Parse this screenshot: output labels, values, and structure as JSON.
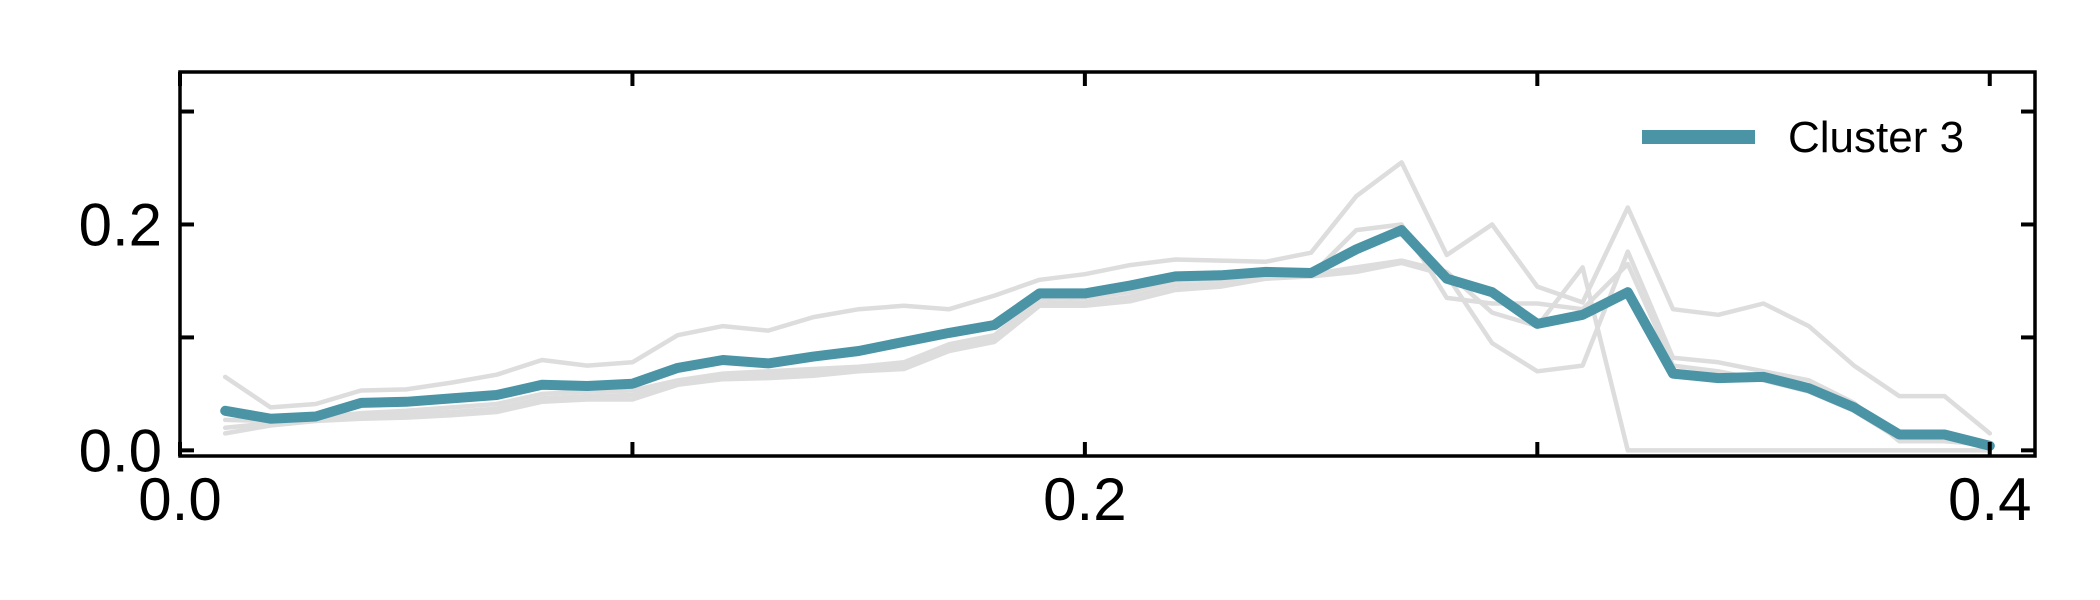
{
  "chart_data": {
    "type": "line",
    "title": "",
    "xlabel": "",
    "ylabel": "",
    "xlim": [
      0.0,
      0.41
    ],
    "ylim": [
      -0.005,
      0.335
    ],
    "x_ticks": [
      {
        "value": 0.0,
        "label": "0.0"
      },
      {
        "value": 0.1,
        "label": ""
      },
      {
        "value": 0.2,
        "label": "0.2"
      },
      {
        "value": 0.3,
        "label": ""
      },
      {
        "value": 0.4,
        "label": "0.4"
      }
    ],
    "y_ticks": [
      {
        "value": 0.0,
        "label": "0.0"
      },
      {
        "value": 0.1,
        "label": ""
      },
      {
        "value": 0.2,
        "label": "0.2"
      },
      {
        "value": 0.3,
        "label": ""
      }
    ],
    "legend": {
      "position": "top-right"
    },
    "x": [
      0.01,
      0.02,
      0.03,
      0.04,
      0.05,
      0.06,
      0.07,
      0.08,
      0.09,
      0.1,
      0.11,
      0.12,
      0.13,
      0.14,
      0.15,
      0.16,
      0.17,
      0.18,
      0.19,
      0.2,
      0.21,
      0.22,
      0.23,
      0.24,
      0.25,
      0.26,
      0.27,
      0.28,
      0.29,
      0.3,
      0.31,
      0.32,
      0.33,
      0.34,
      0.35,
      0.36,
      0.37,
      0.38,
      0.39,
      0.4
    ],
    "series": [
      {
        "name": "Cluster 3",
        "highlight": true,
        "color": "#4a94a6",
        "values": [
          0.035,
          0.028,
          0.03,
          0.042,
          0.043,
          0.046,
          0.049,
          0.058,
          0.057,
          0.059,
          0.073,
          0.08,
          0.077,
          0.083,
          0.088,
          0.096,
          0.104,
          0.111,
          0.139,
          0.139,
          0.146,
          0.154,
          0.155,
          0.158,
          0.157,
          0.178,
          0.195,
          0.152,
          0.14,
          0.112,
          0.12,
          0.14,
          0.068,
          0.064,
          0.065,
          0.055,
          0.038,
          0.014,
          0.014,
          0.004
        ]
      },
      {
        "highlight": false,
        "color": "#dddddd",
        "values": [
          0.065,
          0.038,
          0.041,
          0.053,
          0.054,
          0.06,
          0.067,
          0.08,
          0.075,
          0.078,
          0.102,
          0.11,
          0.106,
          0.118,
          0.125,
          0.128,
          0.125,
          0.137,
          0.151,
          0.156,
          0.164,
          0.169,
          0.168,
          0.167,
          0.175,
          0.225,
          0.255,
          0.173,
          0.2,
          0.145,
          0.131,
          0.215,
          0.125,
          0.12,
          0.13,
          0.11,
          0.075,
          0.048,
          0.048,
          0.015
        ]
      },
      {
        "highlight": false,
        "color": "#dddddd",
        "values": [
          0.015,
          0.022,
          0.026,
          0.028,
          0.029,
          0.031,
          0.034,
          0.043,
          0.045,
          0.045,
          0.058,
          0.063,
          0.064,
          0.066,
          0.07,
          0.072,
          0.088,
          0.096,
          0.128,
          0.128,
          0.132,
          0.142,
          0.145,
          0.152,
          0.154,
          0.158,
          0.166,
          0.155,
          0.095,
          0.07,
          0.075,
          0.176,
          0.082,
          0.078,
          0.07,
          0.062,
          0.042,
          0.008,
          0.008,
          0.005
        ]
      },
      {
        "highlight": false,
        "color": "#dddddd",
        "values": [
          0.027,
          0.026,
          0.029,
          0.033,
          0.035,
          0.038,
          0.041,
          0.05,
          0.052,
          0.053,
          0.062,
          0.068,
          0.07,
          0.072,
          0.074,
          0.078,
          0.094,
          0.102,
          0.134,
          0.135,
          0.14,
          0.15,
          0.152,
          0.155,
          0.156,
          0.162,
          0.168,
          0.158,
          0.122,
          0.11,
          0.162,
          0.0,
          0.0,
          0.0,
          0.0,
          0.0,
          0.0,
          0.0,
          0.0,
          0.0
        ]
      },
      {
        "highlight": false,
        "color": "#dddddd",
        "values": [
          0.02,
          0.024,
          0.028,
          0.03,
          0.032,
          0.034,
          0.037,
          0.046,
          0.048,
          0.049,
          0.06,
          0.066,
          0.067,
          0.069,
          0.072,
          0.075,
          0.09,
          0.1,
          0.13,
          0.131,
          0.136,
          0.146,
          0.148,
          0.153,
          0.155,
          0.195,
          0.2,
          0.135,
          0.13,
          0.13,
          0.125,
          0.165,
          0.075,
          0.07,
          0.062,
          0.052,
          0.035,
          0.01,
          0.01,
          0.003
        ]
      }
    ]
  }
}
